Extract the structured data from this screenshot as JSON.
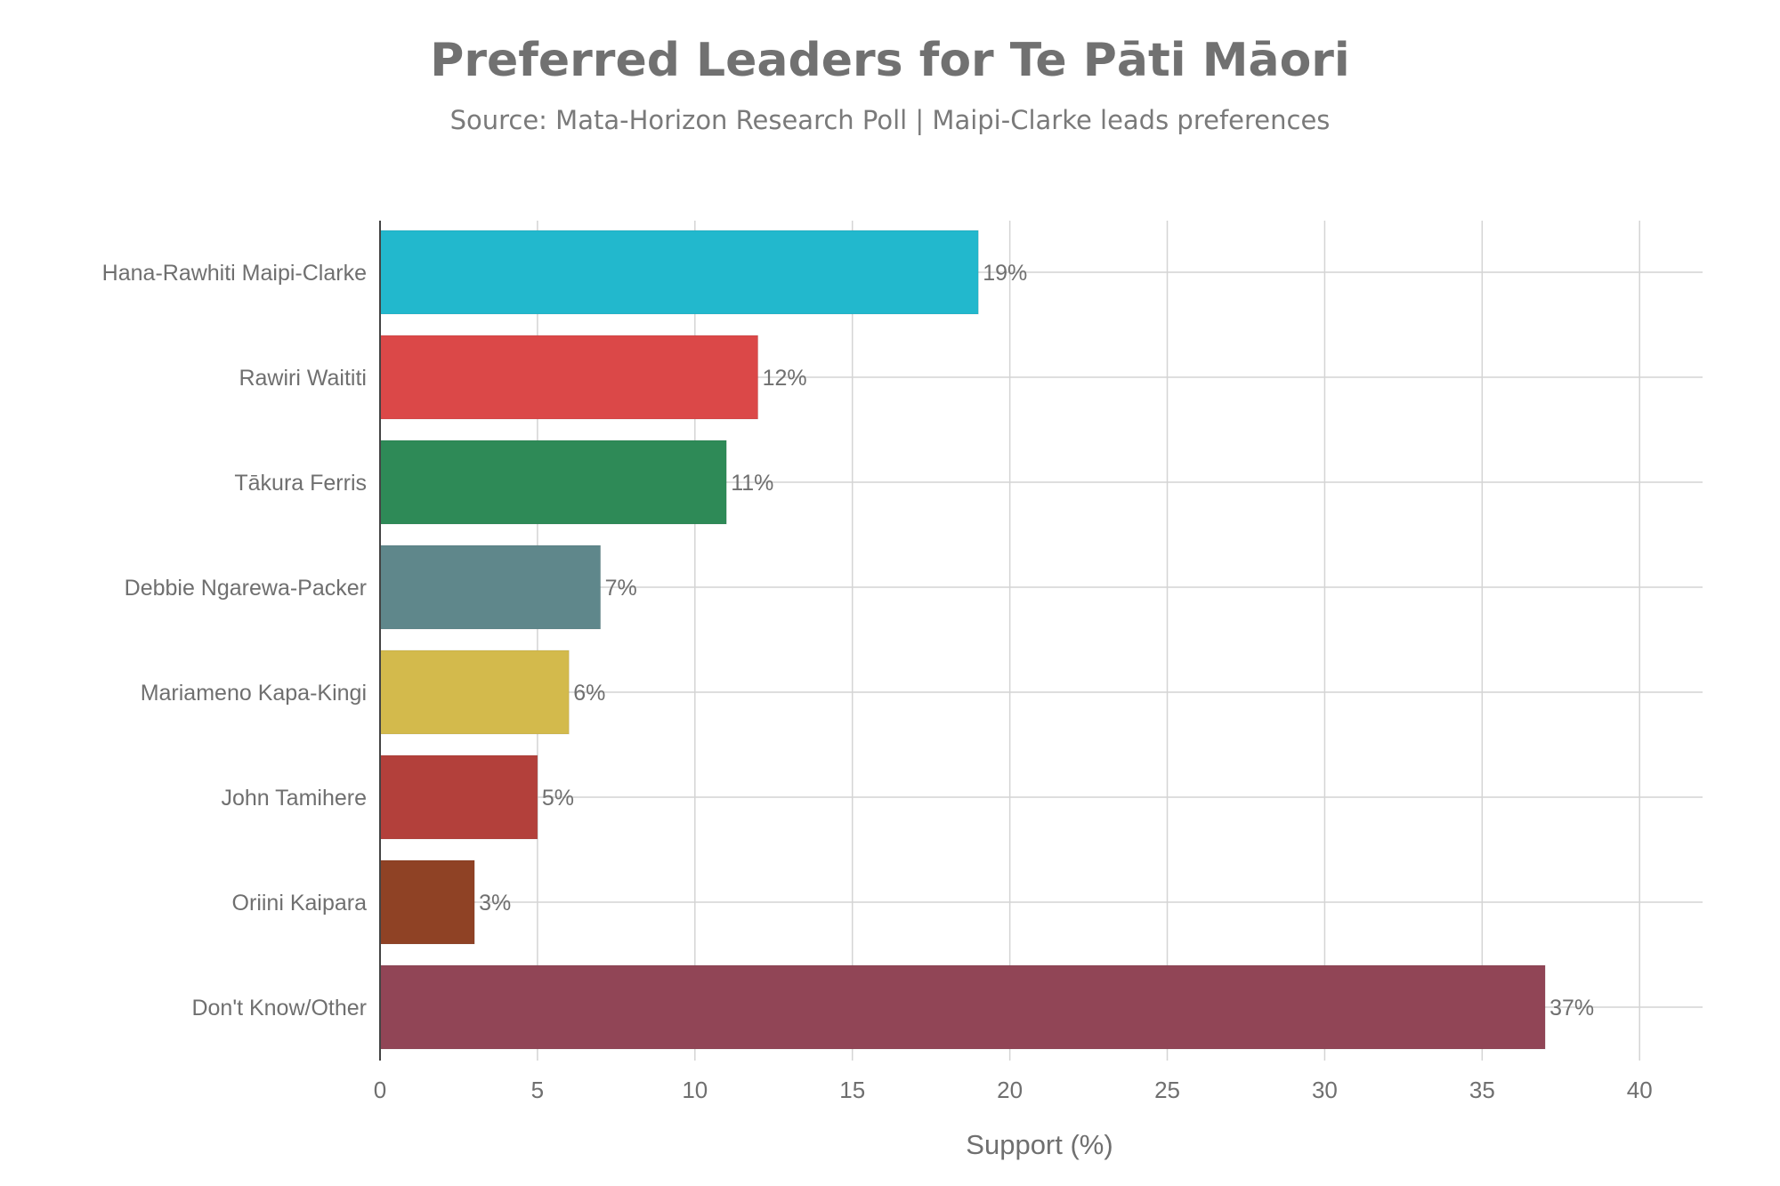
{
  "chart_data": {
    "type": "bar",
    "orientation": "horizontal",
    "title": "Preferred Leaders for Te Pāti Māori",
    "subtitle": "Source: Mata-Horizon Research Poll | Maipi-Clarke leads preferences",
    "xlabel": "Support (%)",
    "ylabel": "",
    "xlim": [
      0,
      42
    ],
    "xticks": [
      0,
      5,
      10,
      15,
      20,
      25,
      30,
      35,
      40
    ],
    "grid": true,
    "categories": [
      "Hana-Rawhiti Maipi-Clarke",
      "Rawiri Waititi",
      "Tākura Ferris",
      "Debbie Ngarewa-Packer",
      "Mariameno Kapa-Kingi",
      "John Tamihere",
      "Oriini Kaipara",
      "Don't Know/Other"
    ],
    "values": [
      19,
      12,
      11,
      7,
      6,
      5,
      3,
      37
    ],
    "value_labels": [
      "19%",
      "12%",
      "11%",
      "7%",
      "6%",
      "5%",
      "3%",
      "37%"
    ],
    "colors": [
      "#22b8cd",
      "#db4848",
      "#2e8a57",
      "#5f878b",
      "#d3ba4c",
      "#b3403b",
      "#8f4225",
      "#914556"
    ]
  }
}
